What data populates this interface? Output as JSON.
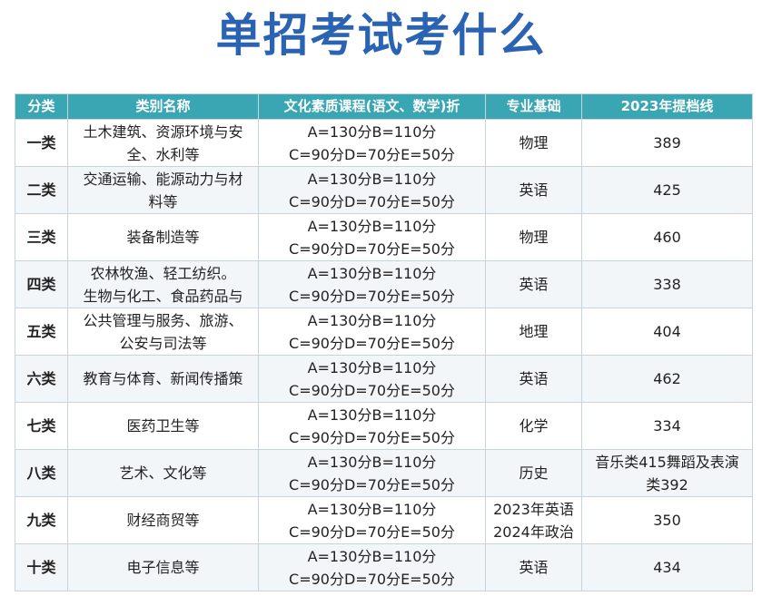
{
  "title": "单招考试考什么",
  "table": {
    "headers": [
      "分类",
      "类别名称",
      "文化素质课程(语文、数学)折",
      "专业基础",
      "2023年提档线"
    ],
    "rows": [
      {
        "cat": "一类",
        "name": [
          "土木建筑、资源环境与安",
          "全、水利等"
        ],
        "culture": [
          "A=130分B=110分",
          "C=90分D=70分E=50分"
        ],
        "subject": [
          "物理"
        ],
        "score": [
          "389"
        ]
      },
      {
        "cat": "二类",
        "name": [
          "交通运输、能源动力与材",
          "料等"
        ],
        "culture": [
          "A=130分B=110分",
          "C=90分D=70分E=50分"
        ],
        "subject": [
          "英语"
        ],
        "score": [
          "425"
        ]
      },
      {
        "cat": "三类",
        "name": [
          "装备制造等"
        ],
        "culture": [
          "A=130分B=110分",
          "C=90分D=70分E=50分"
        ],
        "subject": [
          "物理"
        ],
        "score": [
          "460"
        ]
      },
      {
        "cat": "四类",
        "name": [
          "农林牧渔、轻工纺织。",
          "生物与化工、食品药品与"
        ],
        "culture": [
          "A=130分B=110分",
          "C=90分D=70分E=50分"
        ],
        "subject": [
          "英语"
        ],
        "score": [
          "338"
        ]
      },
      {
        "cat": "五类",
        "name": [
          "公共管理与服务、旅游、",
          "公安与司法等"
        ],
        "culture": [
          "A=130分B=110分",
          "C=90分D=70分E=50分"
        ],
        "subject": [
          "地理"
        ],
        "score": [
          "404"
        ]
      },
      {
        "cat": "六类",
        "name": [
          "教育与体育、新闻传播策"
        ],
        "culture": [
          "A=130分B=110分",
          "C=90分D=70分E=50分"
        ],
        "subject": [
          "英语"
        ],
        "score": [
          "462"
        ]
      },
      {
        "cat": "七类",
        "name": [
          "医药卫生等"
        ],
        "culture": [
          "A=130分B=110分",
          "C=90分D=70分E=50分"
        ],
        "subject": [
          "化学"
        ],
        "score": [
          "334"
        ]
      },
      {
        "cat": "八类",
        "name": [
          "艺术、文化等"
        ],
        "culture": [
          "A=130分B=110分",
          "C=90分D=70分E=50分"
        ],
        "subject": [
          "历史"
        ],
        "score": [
          "音乐类415舞蹈及表演",
          "类392"
        ]
      },
      {
        "cat": "九类",
        "name": [
          "财经商贸等"
        ],
        "culture": [
          "A=130分B=110分",
          "C=90分D=70分E=50分"
        ],
        "subject": [
          "2023年英语",
          "2024年政治"
        ],
        "score": [
          "350"
        ]
      },
      {
        "cat": "十类",
        "name": [
          "电子信息等"
        ],
        "culture": [
          "A=130分B=110分",
          "C=90分D=70分E=50分"
        ],
        "subject": [
          "英语"
        ],
        "score": [
          "434"
        ]
      }
    ]
  }
}
